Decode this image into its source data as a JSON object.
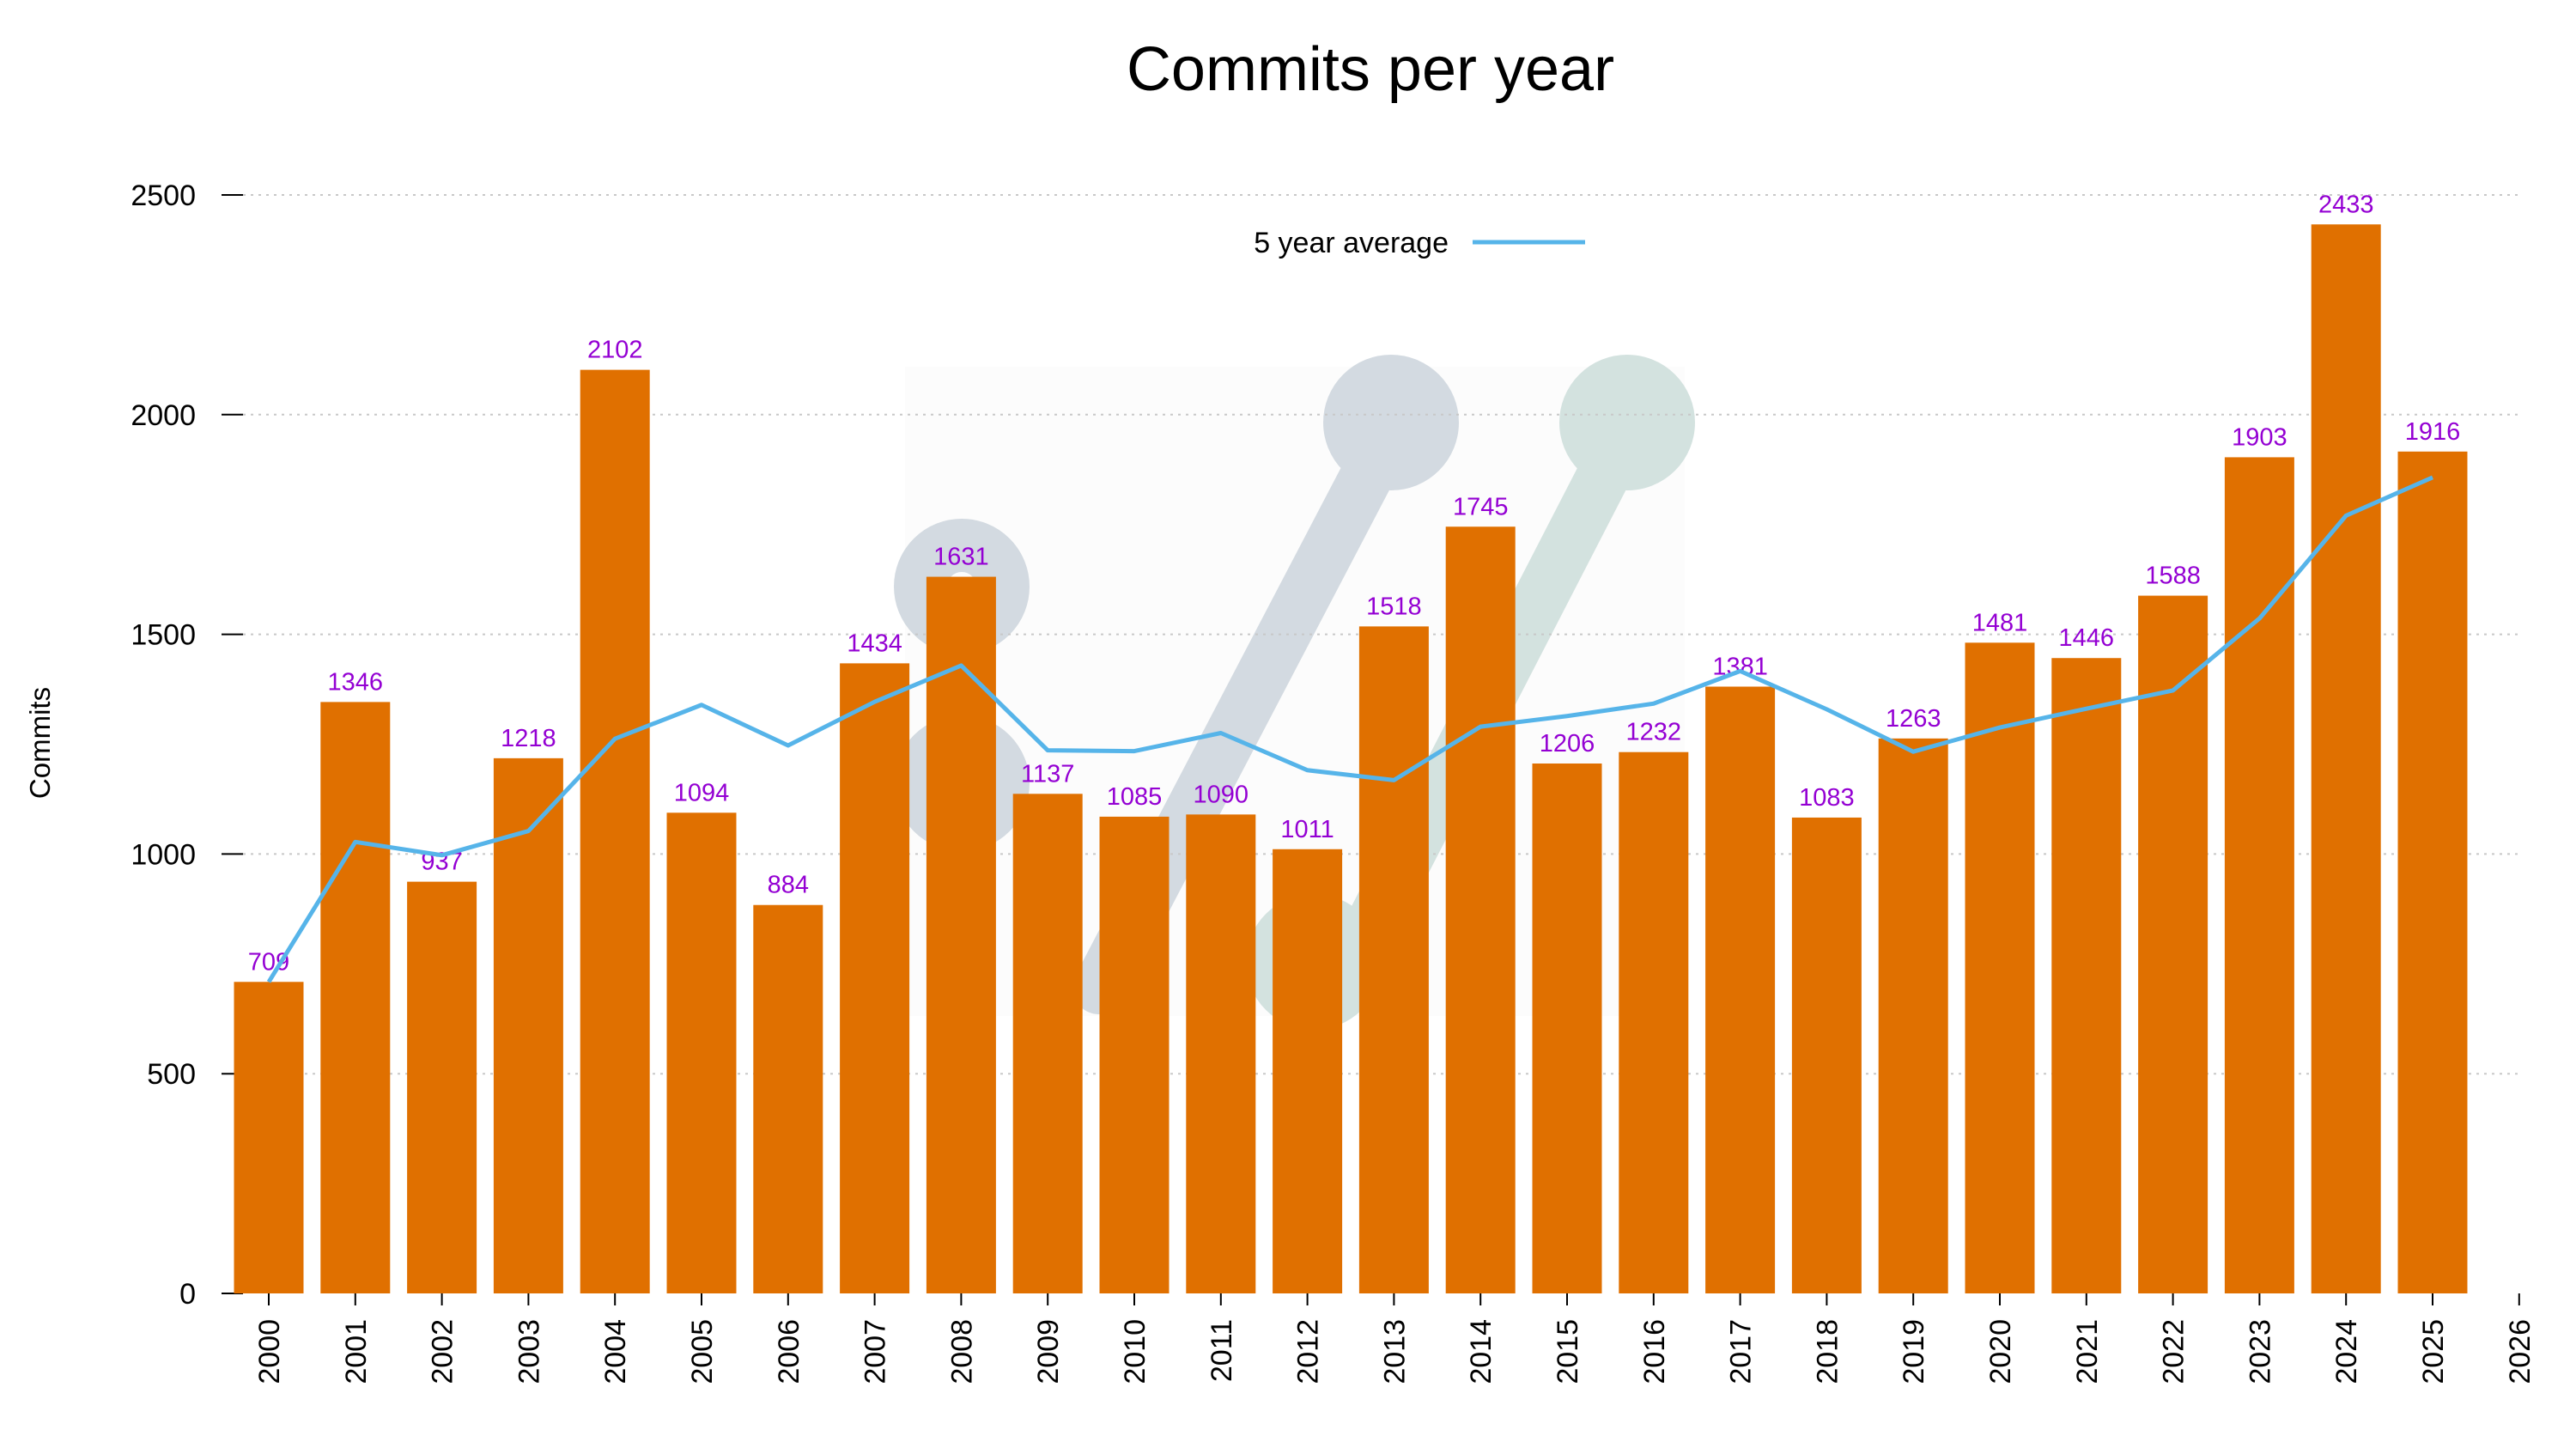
{
  "chart_data": {
    "type": "bar",
    "title": "Commits per year",
    "xlabel": "",
    "ylabel": "Commits",
    "ylim": [
      0,
      2500
    ],
    "yticks": [
      0,
      500,
      1000,
      1500,
      2000,
      2500
    ],
    "grid": "horizontal dotted",
    "categories": [
      "2000",
      "2001",
      "2002",
      "2003",
      "2004",
      "2005",
      "2006",
      "2007",
      "2008",
      "2009",
      "2010",
      "2011",
      "2012",
      "2013",
      "2014",
      "2015",
      "2016",
      "2017",
      "2018",
      "2019",
      "2020",
      "2021",
      "2022",
      "2023",
      "2024",
      "2025"
    ],
    "xticks": [
      "2000",
      "2001",
      "2002",
      "2003",
      "2004",
      "2005",
      "2006",
      "2007",
      "2008",
      "2009",
      "2010",
      "2011",
      "2012",
      "2013",
      "2014",
      "2015",
      "2016",
      "2017",
      "2018",
      "2019",
      "2020",
      "2021",
      "2022",
      "2023",
      "2024",
      "2025",
      "2026"
    ],
    "values": [
      709,
      1346,
      937,
      1218,
      2102,
      1094,
      884,
      1434,
      1631,
      1137,
      1085,
      1090,
      1011,
      1518,
      1745,
      1206,
      1232,
      1381,
      1083,
      1263,
      1481,
      1446,
      1588,
      1903,
      2433,
      1916
    ],
    "series": [
      {
        "name": "5 year average",
        "type": "line",
        "values": [
          709,
          1027.5,
          997.3,
          1052.5,
          1262.4,
          1339.4,
          1247,
          1346.4,
          1429,
          1236,
          1234.2,
          1275.4,
          1190.8,
          1168.2,
          1289.8,
          1314,
          1342.4,
          1416.4,
          1329.4,
          1233,
          1288,
          1330.8,
          1372.2,
          1536.2,
          1770.2,
          1857.2
        ]
      }
    ],
    "legend": {
      "entries": [
        "5 year average"
      ],
      "placement": "top-center"
    },
    "colors": {
      "bar": "#e07000",
      "line": "#56b4e9",
      "data_label": "#9400d3"
    }
  }
}
